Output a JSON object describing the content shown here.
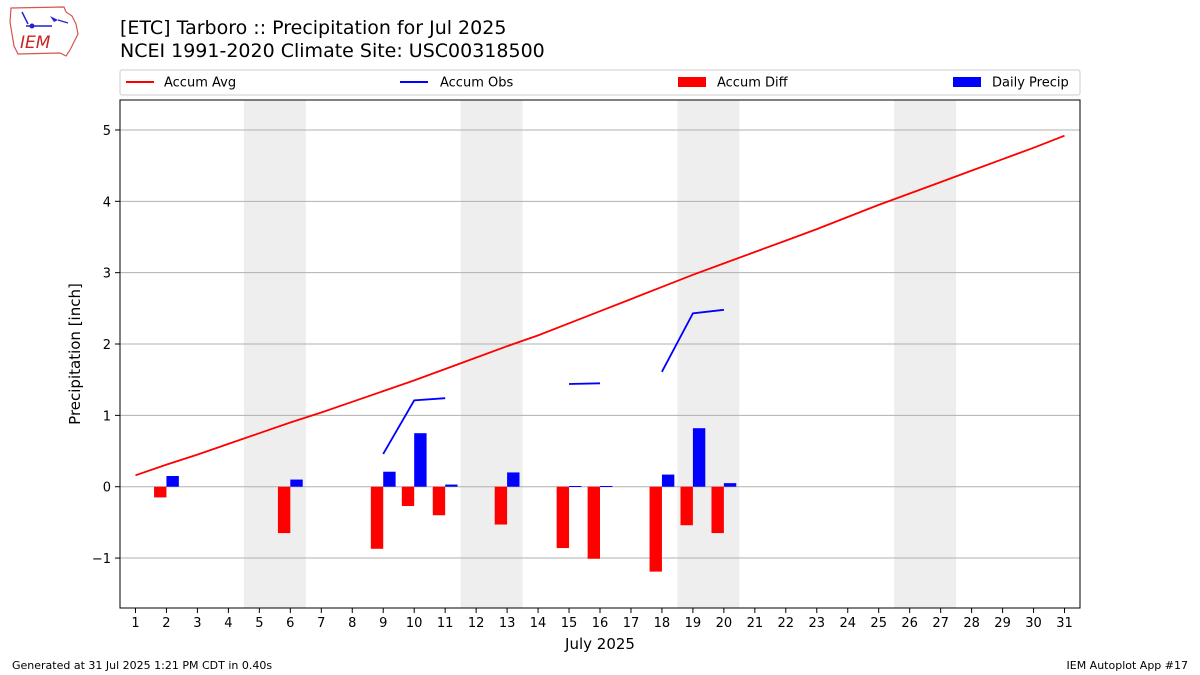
{
  "header": {
    "title_line1": "[ETC] Tarboro :: Precipitation for Jul 2025",
    "title_line2": "NCEI 1991-2020 Climate Site: USC00318500",
    "logo_text": "IEM"
  },
  "footer": {
    "generated": "Generated at 31 Jul 2025 1:21 PM CDT in 0.40s",
    "app": "IEM Autoplot App #17"
  },
  "colors": {
    "accum_avg": "#ff0000",
    "accum_obs": "#0000ff",
    "accum_diff": "#ff0000",
    "daily_precip": "#0000ff",
    "weekend_shade": "#eeeeee",
    "grid": "#b0b0b0"
  },
  "chart_data": {
    "type": "bar",
    "xlabel": "July 2025",
    "ylabel": "Precipitation [inch]",
    "xlim": [
      0.5,
      31.5
    ],
    "ylim": [
      -1.7,
      5.42
    ],
    "yticks": [
      -1,
      0,
      1,
      2,
      3,
      4,
      5
    ],
    "ytick_labels": [
      "−1",
      "0",
      "1",
      "2",
      "3",
      "4",
      "5"
    ],
    "xticks": [
      1,
      2,
      3,
      4,
      5,
      6,
      7,
      8,
      9,
      10,
      11,
      12,
      13,
      14,
      15,
      16,
      17,
      18,
      19,
      20,
      21,
      22,
      23,
      24,
      25,
      26,
      27,
      28,
      29,
      30,
      31
    ],
    "grid": "horizontal",
    "legend_placement": "top",
    "legend": [
      "Accum Avg",
      "Accum Obs",
      "Accum Diff",
      "Daily Precip"
    ],
    "shaded_days": [
      [
        5,
        6
      ],
      [
        12,
        13
      ],
      [
        19,
        20
      ],
      [
        26,
        27
      ]
    ],
    "accum_avg": {
      "x": [
        1,
        2,
        3,
        4,
        5,
        6,
        7,
        8,
        9,
        10,
        11,
        12,
        13,
        14,
        15,
        16,
        17,
        18,
        19,
        20,
        21,
        22,
        23,
        24,
        25,
        26,
        27,
        28,
        29,
        30,
        31
      ],
      "values": [
        0.16,
        0.31,
        0.45,
        0.6,
        0.75,
        0.9,
        1.04,
        1.19,
        1.34,
        1.49,
        1.65,
        1.81,
        1.97,
        2.12,
        2.29,
        2.46,
        2.63,
        2.8,
        2.97,
        3.13,
        3.29,
        3.45,
        3.61,
        3.78,
        3.95,
        4.11,
        4.27,
        4.43,
        4.59,
        4.75,
        4.92
      ]
    },
    "accum_obs": {
      "segments": [
        {
          "x": [
            9,
            10,
            11
          ],
          "values": [
            0.46,
            1.21,
            1.24
          ]
        },
        {
          "x": [
            15,
            16
          ],
          "values": [
            1.44,
            1.45
          ]
        },
        {
          "x": [
            18,
            19,
            20
          ],
          "values": [
            1.61,
            2.43,
            2.48
          ]
        }
      ]
    },
    "accum_diff": {
      "x": [
        2,
        6,
        9,
        10,
        11,
        13,
        15,
        16,
        18,
        19,
        20
      ],
      "values": [
        -0.15,
        -0.65,
        -0.87,
        -0.27,
        -0.4,
        -0.53,
        -0.86,
        -1.01,
        -1.19,
        -0.54,
        -0.65
      ]
    },
    "daily_precip": {
      "x": [
        2,
        6,
        9,
        10,
        11,
        13,
        15,
        16,
        18,
        19,
        20
      ],
      "values": [
        0.15,
        0.1,
        0.21,
        0.75,
        0.03,
        0.2,
        0.01,
        0.01,
        0.17,
        0.82,
        0.05
      ]
    }
  }
}
